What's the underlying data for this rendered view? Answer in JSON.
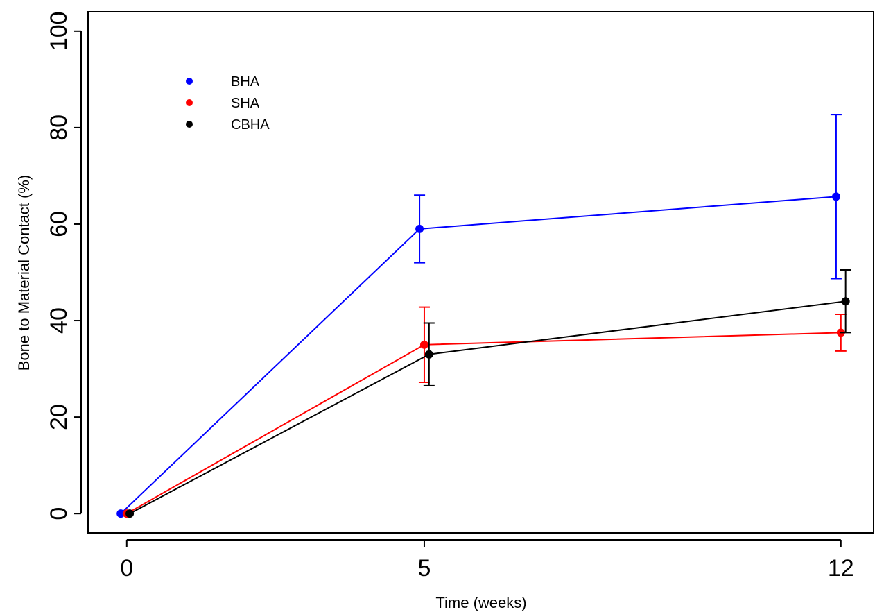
{
  "chart_data": {
    "type": "line",
    "title": "",
    "xlabel": "Time (weeks)",
    "ylabel": "Bone to Material Contact (%)",
    "xlim": [
      -0.65,
      12.55
    ],
    "ylim": [
      -4,
      104
    ],
    "x_ticks": [
      0,
      5,
      12
    ],
    "y_ticks": [
      0,
      20,
      40,
      60,
      80,
      100
    ],
    "grid": false,
    "legend_position": "top-left",
    "series": [
      {
        "name": "BHA",
        "color": "#0000FF",
        "x": [
          -0.1,
          4.92,
          11.92
        ],
        "y": [
          0,
          59,
          65.7
        ],
        "error": [
          null,
          7,
          17
        ]
      },
      {
        "name": "SHA",
        "color": "#FF0000",
        "x": [
          0,
          5.0,
          12.0
        ],
        "y": [
          0,
          35,
          37.5
        ],
        "error": [
          null,
          7.8,
          3.8
        ]
      },
      {
        "name": "CBHA",
        "color": "#000000",
        "x": [
          0.05,
          5.08,
          12.08
        ],
        "y": [
          0,
          33,
          44
        ],
        "error": [
          null,
          6.5,
          6.5
        ]
      }
    ]
  }
}
